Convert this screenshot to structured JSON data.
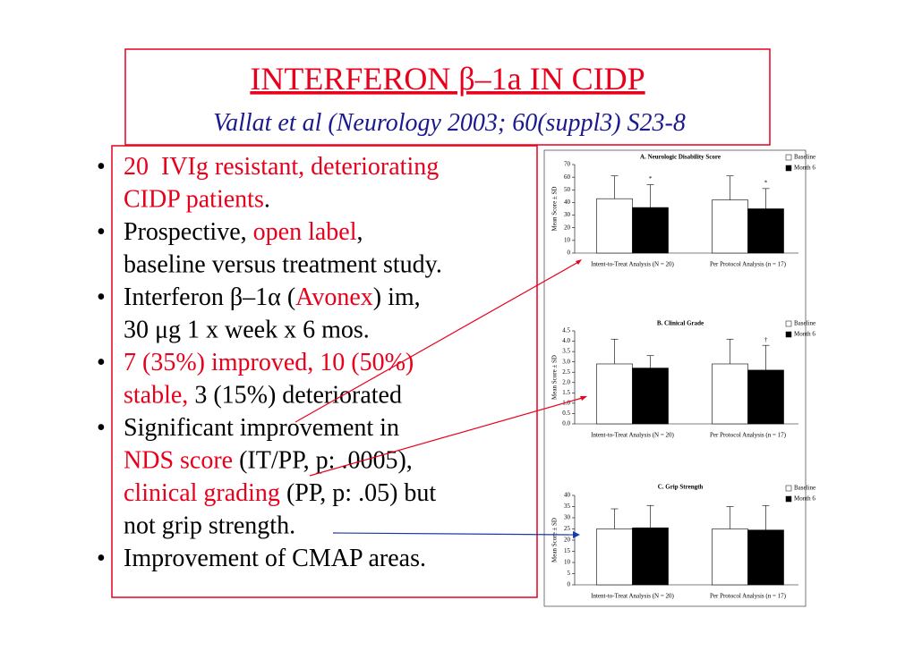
{
  "slide": {
    "title": "INTERFERON β–1a IN CIDP",
    "subtitle": "Vallat et al (Neurology 2003; 60(suppl3) S23-8",
    "bullets": [
      [
        [
          {
            "text": "20  IVIg resistant, deteriorating",
            "color": "#e8001c"
          }
        ],
        [
          {
            "text": "CIDP patients",
            "color": "#e8001c"
          },
          {
            "text": ".",
            "color": "#000000"
          }
        ]
      ],
      [
        [
          {
            "text": "Prospective, ",
            "color": "#000000"
          },
          {
            "text": "open label",
            "color": "#e8001c"
          },
          {
            "text": ",",
            "color": "#000000"
          }
        ],
        [
          {
            "text": "baseline versus treatment study.",
            "color": "#000000"
          }
        ]
      ],
      [
        [
          {
            "text": "Interferon β–1α (",
            "color": "#000000"
          },
          {
            "text": "Avonex",
            "color": "#e8001c"
          },
          {
            "text": ") im,",
            "color": "#000000"
          }
        ],
        [
          {
            "text": "30 μg 1 x week x 6 mos.",
            "color": "#000000"
          }
        ]
      ],
      [
        [
          {
            "text": "7 (35%) improved, 10 (50%)",
            "color": "#e8001c"
          }
        ],
        [
          {
            "text": "stable,",
            "color": "#e8001c"
          },
          {
            "text": " 3 (15%) deteriorated",
            "color": "#000000"
          }
        ]
      ],
      [
        [
          {
            "text": "Significant improvement in",
            "color": "#000000"
          }
        ],
        [
          {
            "text": "NDS score",
            "color": "#e8001c"
          },
          {
            "text": " (IT/PP, p: .0005),",
            "color": "#000000"
          }
        ],
        [
          {
            "text": "clinical grading",
            "color": "#e8001c"
          },
          {
            "text": " (PP, p: .05) but",
            "color": "#000000"
          }
        ],
        [
          {
            "text": "not grip strength.",
            "color": "#000000"
          }
        ]
      ],
      [
        [
          {
            "text": "Improvement of CMAP areas.",
            "color": "#000000"
          }
        ]
      ]
    ]
  },
  "chart_data": [
    {
      "type": "bar",
      "title": "A. Neurologic Disability Score",
      "y_label": "Mean Score ± SD",
      "categories": [
        "Intent-to-Treat Analysis (N = 20)",
        "Per Protocol Analysis (n = 17)"
      ],
      "series": [
        {
          "name": "Baseline",
          "color": "#ffffff",
          "values": [
            43,
            42
          ],
          "errors": [
            18,
            19
          ]
        },
        {
          "name": "Month 6",
          "color": "#000000",
          "values": [
            36,
            35
          ],
          "errors": [
            18,
            16
          ],
          "markers": [
            "*",
            "*"
          ]
        }
      ],
      "ylim": [
        0,
        70
      ],
      "yticks": [
        0,
        10,
        20,
        30,
        40,
        50,
        60,
        70
      ]
    },
    {
      "type": "bar",
      "title": "B. Clinical Grade",
      "y_label": "Mean Score ± SD",
      "categories": [
        "Intent-to-Treat Analysis (N = 20)",
        "Per Protocol Analysis (n = 17)"
      ],
      "series": [
        {
          "name": "Baseline",
          "color": "#ffffff",
          "values": [
            2.9,
            2.9
          ],
          "errors": [
            1.2,
            1.2
          ]
        },
        {
          "name": "Month 6",
          "color": "#000000",
          "values": [
            2.7,
            2.6
          ],
          "errors": [
            0.6,
            1.2
          ],
          "markers": [
            null,
            "†"
          ]
        }
      ],
      "ylim": [
        0,
        4.5
      ],
      "yticks": [
        {
          "value": 0,
          "label": "0.0"
        },
        0.5,
        {
          "value": 1,
          "label": "1.0"
        },
        1.5,
        {
          "value": 2,
          "label": "2.0"
        },
        2.5,
        {
          "value": 3,
          "label": "3.0"
        },
        3.5,
        {
          "value": 4,
          "label": "4.0"
        },
        4.5
      ]
    },
    {
      "type": "bar",
      "title": "C. Grip Strength",
      "y_label": "Mean Score ± SD",
      "categories": [
        "Intent-to-Treat Analysis (N = 20)",
        "Per Protocol Analysis (n = 17)"
      ],
      "series": [
        {
          "name": "Baseline",
          "color": "#ffffff",
          "values": [
            25,
            25
          ],
          "errors": [
            9,
            10
          ]
        },
        {
          "name": "Month 6",
          "color": "#000000",
          "values": [
            25.5,
            24.5
          ],
          "errors": [
            10,
            11
          ]
        }
      ],
      "ylim": [
        0,
        40
      ],
      "yticks": [
        0,
        5,
        10,
        15,
        20,
        25,
        30,
        35,
        40
      ]
    }
  ]
}
